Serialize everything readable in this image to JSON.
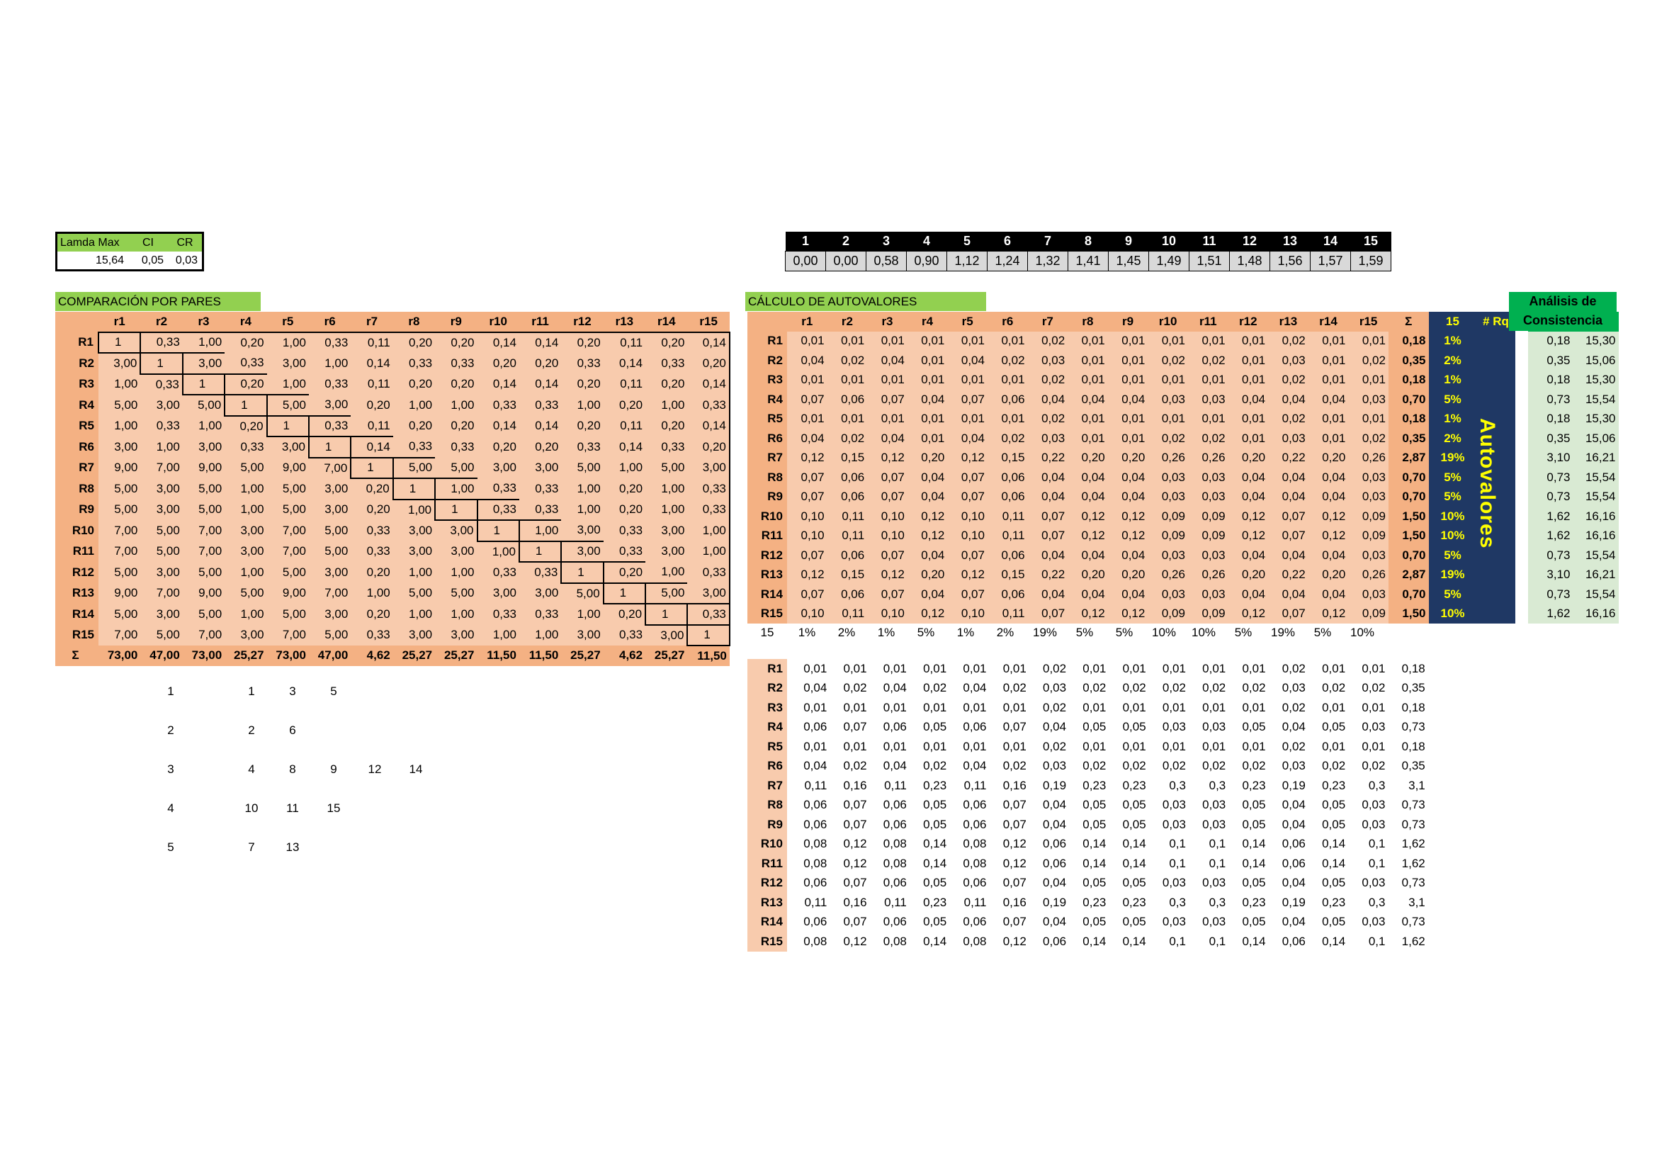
{
  "summary": {
    "headers": [
      "Lamda Max",
      "CI",
      "CR"
    ],
    "values": [
      "15,64",
      "0,05",
      "0,03"
    ]
  },
  "ri_table": {
    "n": [
      "1",
      "2",
      "3",
      "4",
      "5",
      "6",
      "7",
      "8",
      "9",
      "10",
      "11",
      "12",
      "13",
      "14",
      "15"
    ],
    "ri": [
      "0,00",
      "0,00",
      "0,58",
      "0,90",
      "1,12",
      "1,24",
      "1,32",
      "1,41",
      "1,45",
      "1,49",
      "1,51",
      "1,48",
      "1,56",
      "1,57",
      "1,59"
    ]
  },
  "comparison": {
    "title": "COMPARACIÓN POR PARES",
    "columns": [
      "r1",
      "r2",
      "r3",
      "r4",
      "r5",
      "r6",
      "r7",
      "r8",
      "r9",
      "r10",
      "r11",
      "r12",
      "r13",
      "r14",
      "r15"
    ],
    "rows": [
      {
        "label": "R1",
        "cells": [
          "1",
          "0,33",
          "1,00",
          "0,20",
          "1,00",
          "0,33",
          "0,11",
          "0,20",
          "0,20",
          "0,14",
          "0,14",
          "0,20",
          "0,11",
          "0,20",
          "0,14"
        ]
      },
      {
        "label": "R2",
        "cells": [
          "3,00",
          "1",
          "3,00",
          "0,33",
          "3,00",
          "1,00",
          "0,14",
          "0,33",
          "0,33",
          "0,20",
          "0,20",
          "0,33",
          "0,14",
          "0,33",
          "0,20"
        ]
      },
      {
        "label": "R3",
        "cells": [
          "1,00",
          "0,33",
          "1",
          "0,20",
          "1,00",
          "0,33",
          "0,11",
          "0,20",
          "0,20",
          "0,14",
          "0,14",
          "0,20",
          "0,11",
          "0,20",
          "0,14"
        ]
      },
      {
        "label": "R4",
        "cells": [
          "5,00",
          "3,00",
          "5,00",
          "1",
          "5,00",
          "3,00",
          "0,20",
          "1,00",
          "1,00",
          "0,33",
          "0,33",
          "1,00",
          "0,20",
          "1,00",
          "0,33"
        ]
      },
      {
        "label": "R5",
        "cells": [
          "1,00",
          "0,33",
          "1,00",
          "0,20",
          "1",
          "0,33",
          "0,11",
          "0,20",
          "0,20",
          "0,14",
          "0,14",
          "0,20",
          "0,11",
          "0,20",
          "0,14"
        ]
      },
      {
        "label": "R6",
        "cells": [
          "3,00",
          "1,00",
          "3,00",
          "0,33",
          "3,00",
          "1",
          "0,14",
          "0,33",
          "0,33",
          "0,20",
          "0,20",
          "0,33",
          "0,14",
          "0,33",
          "0,20"
        ]
      },
      {
        "label": "R7",
        "cells": [
          "9,00",
          "7,00",
          "9,00",
          "5,00",
          "9,00",
          "7,00",
          "1",
          "5,00",
          "5,00",
          "3,00",
          "3,00",
          "5,00",
          "1,00",
          "5,00",
          "3,00"
        ]
      },
      {
        "label": "R8",
        "cells": [
          "5,00",
          "3,00",
          "5,00",
          "1,00",
          "5,00",
          "3,00",
          "0,20",
          "1",
          "1,00",
          "0,33",
          "0,33",
          "1,00",
          "0,20",
          "1,00",
          "0,33"
        ]
      },
      {
        "label": "R9",
        "cells": [
          "5,00",
          "3,00",
          "5,00",
          "1,00",
          "5,00",
          "3,00",
          "0,20",
          "1,00",
          "1",
          "0,33",
          "0,33",
          "1,00",
          "0,20",
          "1,00",
          "0,33"
        ]
      },
      {
        "label": "R10",
        "cells": [
          "7,00",
          "5,00",
          "7,00",
          "3,00",
          "7,00",
          "5,00",
          "0,33",
          "3,00",
          "3,00",
          "1",
          "1,00",
          "3,00",
          "0,33",
          "3,00",
          "1,00"
        ]
      },
      {
        "label": "R11",
        "cells": [
          "7,00",
          "5,00",
          "7,00",
          "3,00",
          "7,00",
          "5,00",
          "0,33",
          "3,00",
          "3,00",
          "1,00",
          "1",
          "3,00",
          "0,33",
          "3,00",
          "1,00"
        ]
      },
      {
        "label": "R12",
        "cells": [
          "5,00",
          "3,00",
          "5,00",
          "1,00",
          "5,00",
          "3,00",
          "0,20",
          "1,00",
          "1,00",
          "0,33",
          "0,33",
          "1",
          "0,20",
          "1,00",
          "0,33"
        ]
      },
      {
        "label": "R13",
        "cells": [
          "9,00",
          "7,00",
          "9,00",
          "5,00",
          "9,00",
          "7,00",
          "1,00",
          "5,00",
          "5,00",
          "3,00",
          "3,00",
          "5,00",
          "1",
          "5,00",
          "3,00"
        ]
      },
      {
        "label": "R14",
        "cells": [
          "5,00",
          "3,00",
          "5,00",
          "1,00",
          "5,00",
          "3,00",
          "0,20",
          "1,00",
          "1,00",
          "0,33",
          "0,33",
          "1,00",
          "0,20",
          "1",
          "0,33"
        ]
      },
      {
        "label": "R15",
        "cells": [
          "7,00",
          "5,00",
          "7,00",
          "3,00",
          "7,00",
          "5,00",
          "0,33",
          "3,00",
          "3,00",
          "1,00",
          "1,00",
          "3,00",
          "0,33",
          "3,00",
          "1"
        ]
      }
    ],
    "sum_label": "Σ",
    "sums": [
      "73,00",
      "47,00",
      "73,00",
      "25,27",
      "73,00",
      "47,00",
      "4,62",
      "25,27",
      "25,27",
      "11,50",
      "11,50",
      "25,27",
      "4,62",
      "25,27",
      "11,50"
    ]
  },
  "eigen": {
    "title": "CÁLCULO DE AUTOVALORES",
    "columns": [
      "r1",
      "r2",
      "r3",
      "r4",
      "r5",
      "r6",
      "r7",
      "r8",
      "r9",
      "r10",
      "r11",
      "r12",
      "r13",
      "r14",
      "r15"
    ],
    "sum_header": "Σ",
    "pct_header": "15",
    "rq_header": "# Rq",
    "vertical_label": "Autovalores",
    "consistency_title": "Análisis de Consistencia",
    "rows": [
      {
        "label": "R1",
        "cells": [
          "0,01",
          "0,01",
          "0,01",
          "0,01",
          "0,01",
          "0,01",
          "0,02",
          "0,01",
          "0,01",
          "0,01",
          "0,01",
          "0,01",
          "0,02",
          "0,01",
          "0,01"
        ],
        "sum": "0,18",
        "pct": "1%",
        "c1": "0,18",
        "c2": "15,30"
      },
      {
        "label": "R2",
        "cells": [
          "0,04",
          "0,02",
          "0,04",
          "0,01",
          "0,04",
          "0,02",
          "0,03",
          "0,01",
          "0,01",
          "0,02",
          "0,02",
          "0,01",
          "0,03",
          "0,01",
          "0,02"
        ],
        "sum": "0,35",
        "pct": "2%",
        "c1": "0,35",
        "c2": "15,06"
      },
      {
        "label": "R3",
        "cells": [
          "0,01",
          "0,01",
          "0,01",
          "0,01",
          "0,01",
          "0,01",
          "0,02",
          "0,01",
          "0,01",
          "0,01",
          "0,01",
          "0,01",
          "0,02",
          "0,01",
          "0,01"
        ],
        "sum": "0,18",
        "pct": "1%",
        "c1": "0,18",
        "c2": "15,30"
      },
      {
        "label": "R4",
        "cells": [
          "0,07",
          "0,06",
          "0,07",
          "0,04",
          "0,07",
          "0,06",
          "0,04",
          "0,04",
          "0,04",
          "0,03",
          "0,03",
          "0,04",
          "0,04",
          "0,04",
          "0,03"
        ],
        "sum": "0,70",
        "pct": "5%",
        "c1": "0,73",
        "c2": "15,54"
      },
      {
        "label": "R5",
        "cells": [
          "0,01",
          "0,01",
          "0,01",
          "0,01",
          "0,01",
          "0,01",
          "0,02",
          "0,01",
          "0,01",
          "0,01",
          "0,01",
          "0,01",
          "0,02",
          "0,01",
          "0,01"
        ],
        "sum": "0,18",
        "pct": "1%",
        "c1": "0,18",
        "c2": "15,30"
      },
      {
        "label": "R6",
        "cells": [
          "0,04",
          "0,02",
          "0,04",
          "0,01",
          "0,04",
          "0,02",
          "0,03",
          "0,01",
          "0,01",
          "0,02",
          "0,02",
          "0,01",
          "0,03",
          "0,01",
          "0,02"
        ],
        "sum": "0,35",
        "pct": "2%",
        "c1": "0,35",
        "c2": "15,06"
      },
      {
        "label": "R7",
        "cells": [
          "0,12",
          "0,15",
          "0,12",
          "0,20",
          "0,12",
          "0,15",
          "0,22",
          "0,20",
          "0,20",
          "0,26",
          "0,26",
          "0,20",
          "0,22",
          "0,20",
          "0,26"
        ],
        "sum": "2,87",
        "pct": "19%",
        "c1": "3,10",
        "c2": "16,21"
      },
      {
        "label": "R8",
        "cells": [
          "0,07",
          "0,06",
          "0,07",
          "0,04",
          "0,07",
          "0,06",
          "0,04",
          "0,04",
          "0,04",
          "0,03",
          "0,03",
          "0,04",
          "0,04",
          "0,04",
          "0,03"
        ],
        "sum": "0,70",
        "pct": "5%",
        "c1": "0,73",
        "c2": "15,54"
      },
      {
        "label": "R9",
        "cells": [
          "0,07",
          "0,06",
          "0,07",
          "0,04",
          "0,07",
          "0,06",
          "0,04",
          "0,04",
          "0,04",
          "0,03",
          "0,03",
          "0,04",
          "0,04",
          "0,04",
          "0,03"
        ],
        "sum": "0,70",
        "pct": "5%",
        "c1": "0,73",
        "c2": "15,54"
      },
      {
        "label": "R10",
        "cells": [
          "0,10",
          "0,11",
          "0,10",
          "0,12",
          "0,10",
          "0,11",
          "0,07",
          "0,12",
          "0,12",
          "0,09",
          "0,09",
          "0,12",
          "0,07",
          "0,12",
          "0,09"
        ],
        "sum": "1,50",
        "pct": "10%",
        "c1": "1,62",
        "c2": "16,16"
      },
      {
        "label": "R11",
        "cells": [
          "0,10",
          "0,11",
          "0,10",
          "0,12",
          "0,10",
          "0,11",
          "0,07",
          "0,12",
          "0,12",
          "0,09",
          "0,09",
          "0,12",
          "0,07",
          "0,12",
          "0,09"
        ],
        "sum": "1,50",
        "pct": "10%",
        "c1": "1,62",
        "c2": "16,16"
      },
      {
        "label": "R12",
        "cells": [
          "0,07",
          "0,06",
          "0,07",
          "0,04",
          "0,07",
          "0,06",
          "0,04",
          "0,04",
          "0,04",
          "0,03",
          "0,03",
          "0,04",
          "0,04",
          "0,04",
          "0,03"
        ],
        "sum": "0,70",
        "pct": "5%",
        "c1": "0,73",
        "c2": "15,54"
      },
      {
        "label": "R13",
        "cells": [
          "0,12",
          "0,15",
          "0,12",
          "0,20",
          "0,12",
          "0,15",
          "0,22",
          "0,20",
          "0,20",
          "0,26",
          "0,26",
          "0,20",
          "0,22",
          "0,20",
          "0,26"
        ],
        "sum": "2,87",
        "pct": "19%",
        "c1": "3,10",
        "c2": "16,21"
      },
      {
        "label": "R14",
        "cells": [
          "0,07",
          "0,06",
          "0,07",
          "0,04",
          "0,07",
          "0,06",
          "0,04",
          "0,04",
          "0,04",
          "0,03",
          "0,03",
          "0,04",
          "0,04",
          "0,04",
          "0,03"
        ],
        "sum": "0,70",
        "pct": "5%",
        "c1": "0,73",
        "c2": "15,54"
      },
      {
        "label": "R15",
        "cells": [
          "0,10",
          "0,11",
          "0,10",
          "0,12",
          "0,10",
          "0,11",
          "0,07",
          "0,12",
          "0,12",
          "0,09",
          "0,09",
          "0,12",
          "0,07",
          "0,12",
          "0,09"
        ],
        "sum": "1,50",
        "pct": "10%",
        "c1": "1,62",
        "c2": "16,16"
      }
    ]
  },
  "pct_row": [
    "15",
    "1%",
    "2%",
    "1%",
    "5%",
    "1%",
    "2%",
    "19%",
    "5%",
    "5%",
    "10%",
    "10%",
    "5%",
    "19%",
    "5%",
    "10%"
  ],
  "lower": {
    "rows": [
      {
        "label": "R1",
        "cells": [
          "0,01",
          "0,01",
          "0,01",
          "0,01",
          "0,01",
          "0,01",
          "0,02",
          "0,01",
          "0,01",
          "0,01",
          "0,01",
          "0,01",
          "0,02",
          "0,01",
          "0,01",
          "0,18"
        ]
      },
      {
        "label": "R2",
        "cells": [
          "0,04",
          "0,02",
          "0,04",
          "0,02",
          "0,04",
          "0,02",
          "0,03",
          "0,02",
          "0,02",
          "0,02",
          "0,02",
          "0,02",
          "0,03",
          "0,02",
          "0,02",
          "0,35"
        ]
      },
      {
        "label": "R3",
        "cells": [
          "0,01",
          "0,01",
          "0,01",
          "0,01",
          "0,01",
          "0,01",
          "0,02",
          "0,01",
          "0,01",
          "0,01",
          "0,01",
          "0,01",
          "0,02",
          "0,01",
          "0,01",
          "0,18"
        ]
      },
      {
        "label": "R4",
        "cells": [
          "0,06",
          "0,07",
          "0,06",
          "0,05",
          "0,06",
          "0,07",
          "0,04",
          "0,05",
          "0,05",
          "0,03",
          "0,03",
          "0,05",
          "0,04",
          "0,05",
          "0,03",
          "0,73"
        ]
      },
      {
        "label": "R5",
        "cells": [
          "0,01",
          "0,01",
          "0,01",
          "0,01",
          "0,01",
          "0,01",
          "0,02",
          "0,01",
          "0,01",
          "0,01",
          "0,01",
          "0,01",
          "0,02",
          "0,01",
          "0,01",
          "0,18"
        ]
      },
      {
        "label": "R6",
        "cells": [
          "0,04",
          "0,02",
          "0,04",
          "0,02",
          "0,04",
          "0,02",
          "0,03",
          "0,02",
          "0,02",
          "0,02",
          "0,02",
          "0,02",
          "0,03",
          "0,02",
          "0,02",
          "0,35"
        ]
      },
      {
        "label": "R7",
        "cells": [
          "0,11",
          "0,16",
          "0,11",
          "0,23",
          "0,11",
          "0,16",
          "0,19",
          "0,23",
          "0,23",
          "0,3",
          "0,3",
          "0,23",
          "0,19",
          "0,23",
          "0,3",
          "3,1"
        ]
      },
      {
        "label": "R8",
        "cells": [
          "0,06",
          "0,07",
          "0,06",
          "0,05",
          "0,06",
          "0,07",
          "0,04",
          "0,05",
          "0,05",
          "0,03",
          "0,03",
          "0,05",
          "0,04",
          "0,05",
          "0,03",
          "0,73"
        ]
      },
      {
        "label": "R9",
        "cells": [
          "0,06",
          "0,07",
          "0,06",
          "0,05",
          "0,06",
          "0,07",
          "0,04",
          "0,05",
          "0,05",
          "0,03",
          "0,03",
          "0,05",
          "0,04",
          "0,05",
          "0,03",
          "0,73"
        ]
      },
      {
        "label": "R10",
        "cells": [
          "0,08",
          "0,12",
          "0,08",
          "0,14",
          "0,08",
          "0,12",
          "0,06",
          "0,14",
          "0,14",
          "0,1",
          "0,1",
          "0,14",
          "0,06",
          "0,14",
          "0,1",
          "1,62"
        ]
      },
      {
        "label": "R11",
        "cells": [
          "0,08",
          "0,12",
          "0,08",
          "0,14",
          "0,08",
          "0,12",
          "0,06",
          "0,14",
          "0,14",
          "0,1",
          "0,1",
          "0,14",
          "0,06",
          "0,14",
          "0,1",
          "1,62"
        ]
      },
      {
        "label": "R12",
        "cells": [
          "0,06",
          "0,07",
          "0,06",
          "0,05",
          "0,06",
          "0,07",
          "0,04",
          "0,05",
          "0,05",
          "0,03",
          "0,03",
          "0,05",
          "0,04",
          "0,05",
          "0,03",
          "0,73"
        ]
      },
      {
        "label": "R13",
        "cells": [
          "0,11",
          "0,16",
          "0,11",
          "0,23",
          "0,11",
          "0,16",
          "0,19",
          "0,23",
          "0,23",
          "0,3",
          "0,3",
          "0,23",
          "0,19",
          "0,23",
          "0,3",
          "3,1"
        ]
      },
      {
        "label": "R14",
        "cells": [
          "0,06",
          "0,07",
          "0,06",
          "0,05",
          "0,06",
          "0,07",
          "0,04",
          "0,05",
          "0,05",
          "0,03",
          "0,03",
          "0,05",
          "0,04",
          "0,05",
          "0,03",
          "0,73"
        ]
      },
      {
        "label": "R15",
        "cells": [
          "0,08",
          "0,12",
          "0,08",
          "0,14",
          "0,08",
          "0,12",
          "0,06",
          "0,14",
          "0,14",
          "0,1",
          "0,1",
          "0,14",
          "0,06",
          "0,14",
          "0,1",
          "1,62"
        ]
      }
    ]
  },
  "groups": [
    {
      "group": "1",
      "members": [
        "1",
        "3",
        "5"
      ]
    },
    {
      "group": "2",
      "members": [
        "2",
        "6"
      ]
    },
    {
      "group": "3",
      "members": [
        "4",
        "8",
        "9",
        "12",
        "14"
      ]
    },
    {
      "group": "4",
      "members": [
        "10",
        "11",
        "15"
      ]
    },
    {
      "group": "5",
      "members": [
        "7",
        "13"
      ]
    }
  ]
}
